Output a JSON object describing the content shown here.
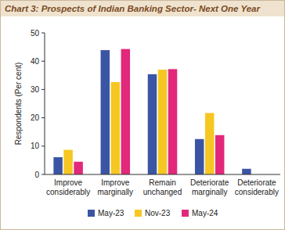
{
  "chart_data": {
    "type": "bar",
    "title": "Chart 3: Prospects of Indian Banking Sector- Next One Year",
    "y_label": "Respondents (Per cent)",
    "categories": [
      "Improve considerably",
      "Improve marginally",
      "Remain unchanged",
      "Deteriorate marginally",
      "Deteriorate considerably"
    ],
    "series": [
      {
        "name": "May-23",
        "color": "#3b55a5",
        "values": [
          6.1,
          43.9,
          35.4,
          12.5,
          2.0
        ]
      },
      {
        "name": "Nov-23",
        "color": "#f6c723",
        "values": [
          8.7,
          32.6,
          37.0,
          21.7,
          0
        ]
      },
      {
        "name": "May-24",
        "color": "#e2287b",
        "values": [
          4.5,
          44.3,
          37.2,
          13.9,
          0
        ]
      }
    ],
    "ylim": [
      0,
      50
    ],
    "yticks": [
      0,
      10,
      20,
      30,
      40,
      50
    ],
    "grid": false,
    "legend": "bottom"
  }
}
